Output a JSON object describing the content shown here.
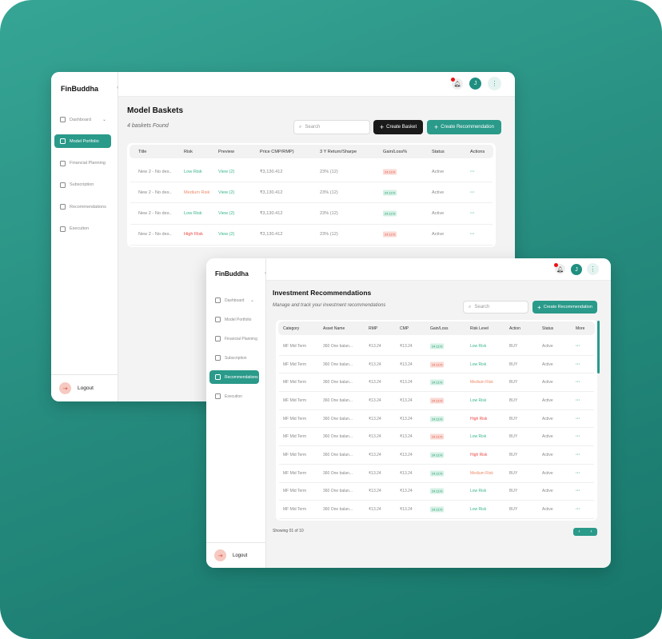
{
  "brand": "FinBuddha",
  "colors": {
    "accent": "#2a9a8a",
    "background": "#24897c",
    "low_risk": "#3ab58f",
    "medium_risk": "#ee8a6a",
    "high_risk": "#ea4b47"
  },
  "avatar_initial": "J",
  "sidebar": {
    "items": [
      {
        "label": "Dashboard",
        "icon": "grid-icon"
      },
      {
        "label": "Model Portfolio",
        "icon": "briefcase-icon"
      },
      {
        "label": "Financial Planning",
        "icon": "briefcase-icon"
      },
      {
        "label": "Subscription",
        "icon": "briefcase-icon"
      },
      {
        "label": "Recommendations",
        "icon": "message-icon"
      },
      {
        "label": "Execution",
        "icon": "network-icon"
      }
    ],
    "logout": "Logout"
  },
  "baskets": {
    "title": "Model Baskets",
    "count": "4 baskets Found",
    "search_placeholder": "Search",
    "create_basket": "Create Basket",
    "create_recommendation": "Create Recommendation",
    "columns": [
      "Title",
      "Risk",
      "Preview",
      "Price CMP/RMP)",
      "3 Y Return/Sharpe",
      "Gain/Loss%",
      "Status",
      "Actions"
    ],
    "rows": [
      {
        "title": "New 2 - No des..",
        "risk": "Low Risk",
        "level": "g",
        "preview": "View (2)",
        "price": "₹3,130.412",
        "ret": "23% (12)",
        "gain": "24.11%",
        "dir": "dn",
        "status": "Active"
      },
      {
        "title": "New 2 - No des..",
        "risk": "Medium Risk",
        "level": "m",
        "preview": "View (2)",
        "price": "₹3,130.412",
        "ret": "23% (12)",
        "gain": "24.11%",
        "dir": "up",
        "status": "Active"
      },
      {
        "title": "New 2 - No des..",
        "risk": "Low Risk",
        "level": "g",
        "preview": "View (2)",
        "price": "₹3,130.412",
        "ret": "23% (12)",
        "gain": "24.11%",
        "dir": "up",
        "status": "Active"
      },
      {
        "title": "New 2 - No des..",
        "risk": "High Risk",
        "level": "h",
        "preview": "View (2)",
        "price": "₹3,130.412",
        "ret": "23% (12)",
        "gain": "24.11%",
        "dir": "dn",
        "status": "Active"
      }
    ]
  },
  "recs": {
    "title": "Investment Recommendations",
    "subtitle": "Manage and track your investment recommendations",
    "search_placeholder": "Search",
    "create_recommendation": "Create Recommendation",
    "columns": [
      "Category",
      "Asset Name",
      "RMP",
      "CMP",
      "Gain/Loss",
      "Risk Level",
      "Action",
      "Status",
      "More"
    ],
    "rows": [
      {
        "cat": "MF Mid Term",
        "asset": "360 One balan...",
        "rmp": "₹13.24",
        "cmp": "₹13.24",
        "gain": "24.11%",
        "dir": "up",
        "risk": "Low Risk",
        "level": "g",
        "action": "BUY",
        "status": "Active"
      },
      {
        "cat": "MF Mid Term",
        "asset": "360 One balan...",
        "rmp": "₹13.24",
        "cmp": "₹13.24",
        "gain": "24.11%",
        "dir": "dn",
        "risk": "Low Risk",
        "level": "g",
        "action": "BUY",
        "status": "Active"
      },
      {
        "cat": "MF Mid Term",
        "asset": "360 One balan...",
        "rmp": "₹13.24",
        "cmp": "₹13.24",
        "gain": "24.11%",
        "dir": "up",
        "risk": "Medium Risk",
        "level": "m",
        "action": "BUY",
        "status": "Active"
      },
      {
        "cat": "MF Mid Term",
        "asset": "360 One balan...",
        "rmp": "₹13.24",
        "cmp": "₹13.24",
        "gain": "24.11%",
        "dir": "dn",
        "risk": "Low Risk",
        "level": "g",
        "action": "BUY",
        "status": "Active"
      },
      {
        "cat": "MF Mid Term",
        "asset": "360 One balan...",
        "rmp": "₹13.24",
        "cmp": "₹13.24",
        "gain": "24.11%",
        "dir": "up",
        "risk": "High Risk",
        "level": "h",
        "action": "BUY",
        "status": "Active"
      },
      {
        "cat": "MF Mid Term",
        "asset": "360 One balan...",
        "rmp": "₹13.24",
        "cmp": "₹13.24",
        "gain": "24.11%",
        "dir": "dn",
        "risk": "Low Risk",
        "level": "g",
        "action": "BUY",
        "status": "Active"
      },
      {
        "cat": "MF Mid Term",
        "asset": "360 One balan...",
        "rmp": "₹13.24",
        "cmp": "₹13.24",
        "gain": "24.11%",
        "dir": "up",
        "risk": "High Risk",
        "level": "h",
        "action": "BUY",
        "status": "Active"
      },
      {
        "cat": "MF Mid Term",
        "asset": "360 One balan...",
        "rmp": "₹13.24",
        "cmp": "₹13.24",
        "gain": "24.11%",
        "dir": "up",
        "risk": "Medium Risk",
        "level": "m",
        "action": "BUY",
        "status": "Active"
      },
      {
        "cat": "MF Mid Term",
        "asset": "360 One balan...",
        "rmp": "₹13.24",
        "cmp": "₹13.24",
        "gain": "24.11%",
        "dir": "up",
        "risk": "Low Risk",
        "level": "g",
        "action": "BUY",
        "status": "Active"
      },
      {
        "cat": "MF Mid Term",
        "asset": "360 One balan...",
        "rmp": "₹13.24",
        "cmp": "₹13.24",
        "gain": "24.11%",
        "dir": "up",
        "risk": "Low Risk",
        "level": "g",
        "action": "BUY",
        "status": "Active"
      }
    ],
    "showing": "Showing 01 of 10"
  }
}
